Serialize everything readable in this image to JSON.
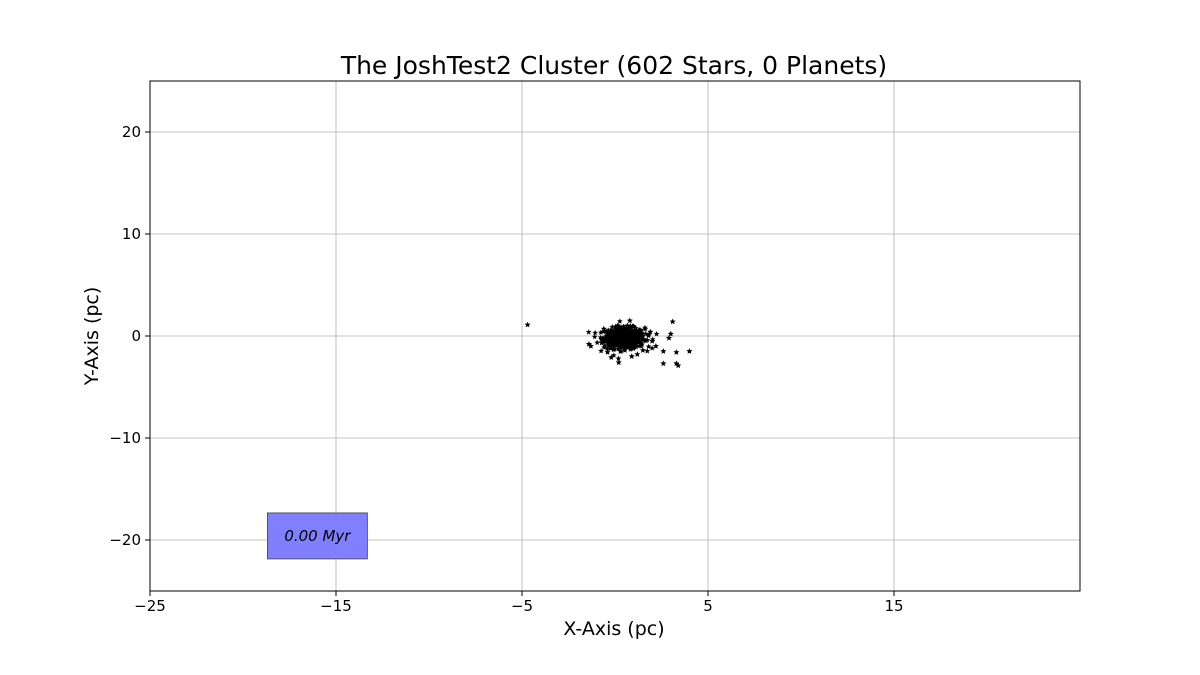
{
  "chart_data": {
    "type": "scatter",
    "title": "The JoshTest2 Cluster (602 Stars, 0 Planets)",
    "xlabel": "X-Axis (pc)",
    "ylabel": "Y-Axis (pc)",
    "xlim": [
      -25,
      25
    ],
    "ylim": [
      -25,
      25
    ],
    "xticks": [
      -25,
      -15,
      -5,
      5,
      15
    ],
    "yticks": [
      20,
      10,
      0,
      -10,
      -20
    ],
    "xtick_labels": [
      "−25",
      "−15",
      "−5",
      "5",
      "15"
    ],
    "ytick_labels": [
      "20",
      "10",
      "0",
      "−10",
      "−20"
    ],
    "grid": true,
    "marker": "star",
    "marker_color": "#000000",
    "total_stars": 602,
    "cluster_center": [
      0.5,
      -0.2
    ],
    "cluster_spread": [
      0.55,
      0.5
    ],
    "outliers": [
      [
        -4.7,
        1.1
      ],
      [
        -1.4,
        -0.8
      ],
      [
        -1.3,
        -1.0
      ],
      [
        3.1,
        1.4
      ],
      [
        3.0,
        0.2
      ],
      [
        2.9,
        -0.2
      ],
      [
        2.6,
        -2.7
      ],
      [
        3.4,
        -2.9
      ],
      [
        3.3,
        -2.7
      ],
      [
        4.0,
        -1.5
      ],
      [
        3.3,
        -1.6
      ],
      [
        2.6,
        -1.5
      ],
      [
        2.2,
        -1.0
      ],
      [
        1.5,
        -1.4
      ],
      [
        1.2,
        -1.8
      ],
      [
        0.9,
        -2.0
      ],
      [
        0.2,
        -2.6
      ],
      [
        -0.2,
        -2.1
      ],
      [
        -0.4,
        -1.6
      ],
      [
        0.8,
        1.5
      ],
      [
        1.9,
        0.4
      ],
      [
        2.0,
        -0.5
      ],
      [
        -0.6,
        0.7
      ]
    ],
    "annotation": {
      "text": "0.00 Myr",
      "x": -16,
      "y": -19.6,
      "facecolor": "#8080ff"
    }
  }
}
